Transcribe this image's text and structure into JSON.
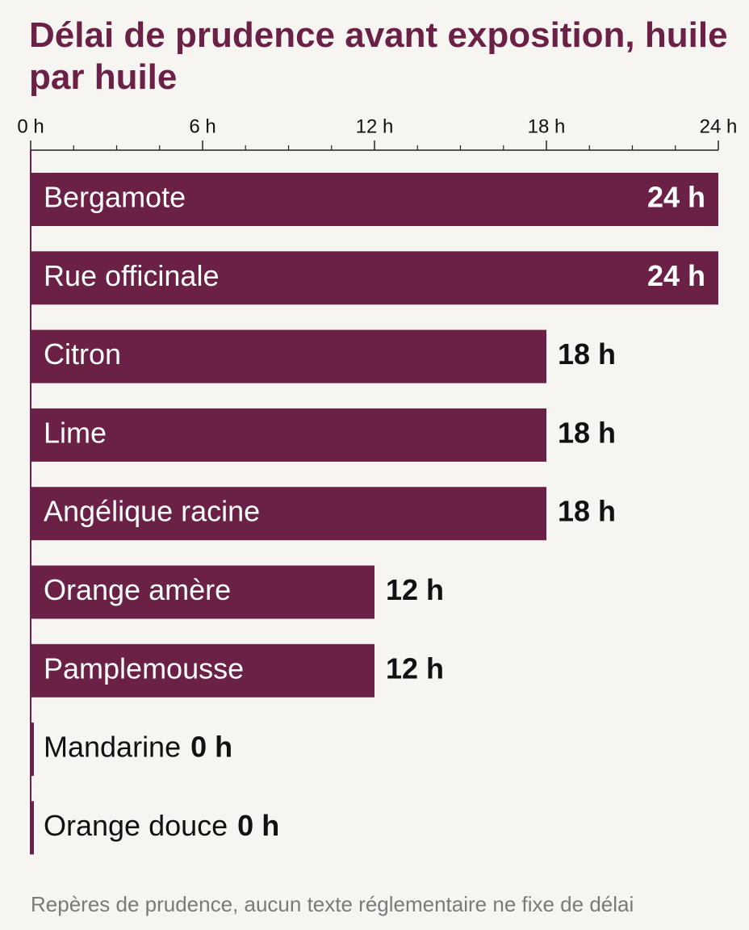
{
  "chart_data": {
    "type": "bar",
    "orientation": "horizontal",
    "title": "Délai de prudence avant exposition, huile par huile",
    "categories": [
      "Bergamote",
      "Rue officinale",
      "Citron",
      "Lime",
      "Angélique racine",
      "Orange amère",
      "Pamplemousse",
      "Mandarine",
      "Orange douce"
    ],
    "values": [
      24,
      24,
      18,
      18,
      18,
      12,
      12,
      0,
      0
    ],
    "value_labels": [
      "24 h",
      "24 h",
      "18 h",
      "18 h",
      "18 h",
      "12 h",
      "12 h",
      "0 h",
      "0 h"
    ],
    "color": "#6b2146",
    "xlim": [
      0,
      24
    ],
    "xticks": [
      {
        "value": 0,
        "label": "0 h"
      },
      {
        "value": 6,
        "label": "6 h"
      },
      {
        "value": 12,
        "label": "12 h"
      },
      {
        "value": 18,
        "label": "18 h"
      },
      {
        "value": 24,
        "label": "24 h"
      }
    ],
    "xminor_ticks": [
      1.5,
      3,
      4.5,
      7.5,
      9,
      10.5,
      13.5,
      15,
      16.5,
      19.5,
      21,
      22.5
    ],
    "note": "Repères de prudence, aucun texte réglementaire ne fixe de délai"
  }
}
